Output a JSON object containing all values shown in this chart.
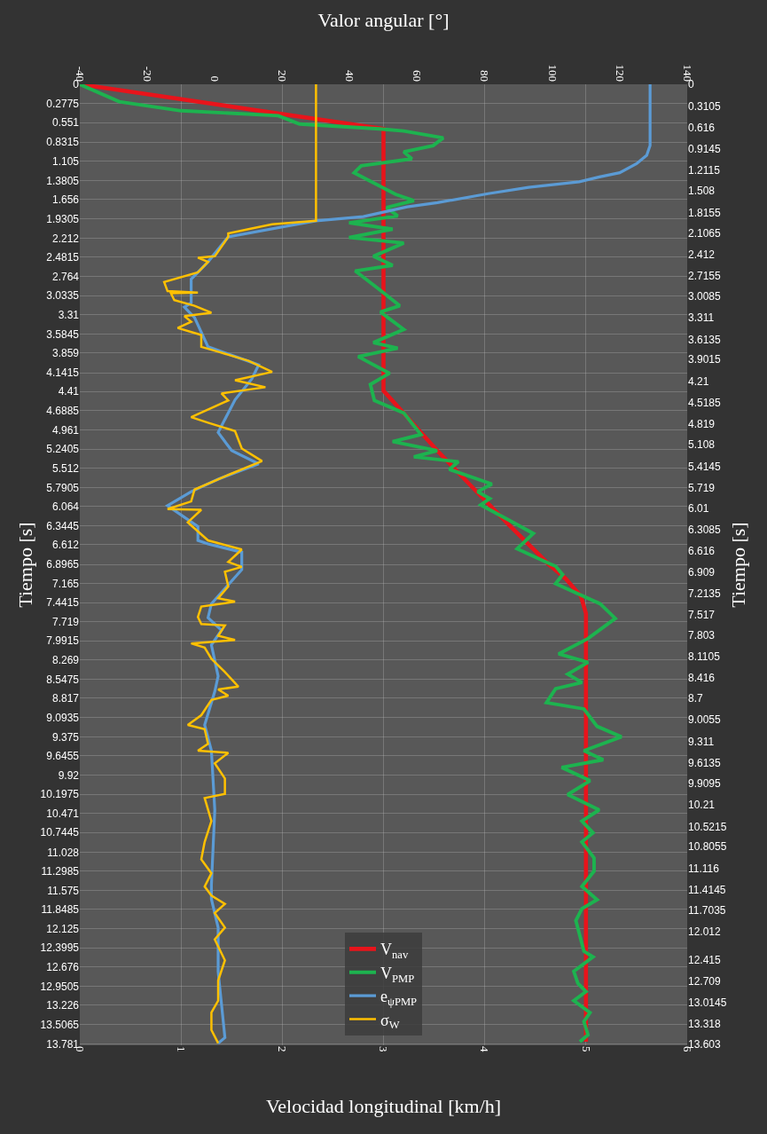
{
  "chart_data": {
    "type": "line",
    "orientation": "horizontal",
    "xlabel": "Velocidad longitudinal [km/h]",
    "x2label": "Valor angular [°]",
    "ylabel": "Tiempo [s]",
    "y2label": "Tiempo [s]",
    "xlim": [
      0,
      6
    ],
    "xticks": [
      0,
      1,
      2,
      3,
      4,
      5,
      6
    ],
    "x2lim": [
      -40,
      140
    ],
    "x2ticks": [
      -40,
      -20,
      0,
      20,
      40,
      60,
      80,
      100,
      120,
      140
    ],
    "ylim": [
      13.8,
      0
    ],
    "y2lim": [
      13.62,
      0
    ],
    "yticks": [
      0,
      0.2775,
      0.551,
      0.8315,
      1.105,
      1.3805,
      1.656,
      1.9305,
      2.212,
      2.4815,
      2.764,
      3.0335,
      3.31,
      3.5845,
      3.859,
      4.1415,
      4.41,
      4.6885,
      4.961,
      5.2405,
      5.512,
      5.7905,
      6.064,
      6.3445,
      6.612,
      6.8965,
      7.165,
      7.4415,
      7.719,
      7.9915,
      8.269,
      8.5475,
      8.817,
      9.0935,
      9.375,
      9.6455,
      9.92,
      10.1975,
      10.471,
      10.7445,
      11.028,
      11.2985,
      11.575,
      11.8485,
      12.125,
      12.3995,
      12.676,
      12.9505,
      13.226,
      13.5065,
      13.781
    ],
    "y2ticks": [
      0,
      0.3105,
      0.616,
      0.9145,
      1.2115,
      1.508,
      1.8155,
      2.1065,
      2.412,
      2.7155,
      3.0085,
      3.311,
      3.6135,
      3.9015,
      4.21,
      4.5185,
      4.819,
      5.108,
      5.4145,
      5.719,
      6.01,
      6.3085,
      6.616,
      6.909,
      7.2135,
      7.517,
      7.803,
      8.1105,
      8.416,
      8.7,
      9.0055,
      9.311,
      9.6135,
      9.9095,
      10.21,
      10.5215,
      10.8055,
      11.116,
      11.4145,
      11.7035,
      12.012,
      12.415,
      12.709,
      13.0145,
      13.318,
      13.603
    ],
    "grid": true,
    "legend": "bottom",
    "marker": "none",
    "line_style": "solid",
    "series": [
      {
        "name": "V$_{nav}$",
        "color": "#e8141b",
        "x": [
          0,
          0.64,
          4.4,
          5.26,
          5.76,
          6.3,
          6.89,
          7.1,
          7.35,
          7.6,
          13.75
        ],
        "values": [
          0,
          3.0,
          3.0,
          3.53,
          3.86,
          4.22,
          4.63,
          4.8,
          4.95,
          5.0,
          5.0
        ]
      },
      {
        "name": "V$_{PMP}$",
        "color": "#1db34f",
        "x": [
          0,
          0.25,
          0.38,
          0.45,
          0.57,
          0.64,
          0.67,
          0.77,
          0.88,
          0.97,
          1.07,
          1.17,
          1.27,
          1.58,
          1.67,
          1.77,
          1.89,
          1.99,
          2.08,
          2.2,
          2.28,
          2.47,
          2.6,
          2.68,
          2.96,
          3.18,
          3.27,
          3.52,
          3.71,
          3.79,
          3.91,
          4.15,
          4.31,
          4.54,
          4.72,
          5.03,
          5.13,
          5.26,
          5.35,
          5.42,
          5.53,
          5.74,
          5.85,
          5.95,
          6.04,
          6.26,
          6.45,
          6.67,
          6.89,
          6.92,
          7.04,
          7.17,
          7.46,
          7.67,
          7.96,
          8.18,
          8.3,
          8.47,
          8.59,
          8.68,
          8.88,
          8.97,
          9.22,
          9.37,
          9.57,
          9.7,
          9.81,
          10.0,
          10.2,
          10.42,
          10.58,
          10.75,
          10.88,
          11.11,
          11.3,
          11.52,
          11.71,
          11.84,
          12.01,
          12.45,
          12.53,
          12.74,
          12.91,
          13.03,
          13.16,
          13.33,
          13.46,
          13.65,
          13.75
        ],
        "values": [
          0,
          0.39,
          1.0,
          1.96,
          2.17,
          2.96,
          3.2,
          3.59,
          3.49,
          3.2,
          3.28,
          2.78,
          2.71,
          3.12,
          3.3,
          3.03,
          3.14,
          2.66,
          3.09,
          2.66,
          3.2,
          2.9,
          3.09,
          2.72,
          2.97,
          3.16,
          2.97,
          3.2,
          2.9,
          3.14,
          2.75,
          3.06,
          2.87,
          2.91,
          3.2,
          3.37,
          3.09,
          3.53,
          3.3,
          3.74,
          3.65,
          4.07,
          3.93,
          4.05,
          3.96,
          4.24,
          4.48,
          4.32,
          4.65,
          4.7,
          4.77,
          4.7,
          5.14,
          5.29,
          5.02,
          4.73,
          5.02,
          4.82,
          4.96,
          4.7,
          4.61,
          4.98,
          5.11,
          5.35,
          4.98,
          5.17,
          4.76,
          5.04,
          4.82,
          5.13,
          4.96,
          5.07,
          4.96,
          5.08,
          5.08,
          4.96,
          5.11,
          4.96,
          4.9,
          4.98,
          5.07,
          4.88,
          4.92,
          5.0,
          4.88,
          5.04,
          4.98,
          5.02,
          4.94
        ]
      },
      {
        "name": "e$_{ψPMP}$",
        "color": "#5b9bd5",
        "axis": "x2",
        "x": [
          0,
          0.26,
          0.64,
          0.88,
          1.02,
          1.14,
          1.27,
          1.33,
          1.4,
          1.48,
          1.57,
          1.7,
          1.76,
          1.9,
          1.96,
          2.19,
          2.55,
          2.8,
          3.14,
          3.2,
          3.35,
          3.77,
          4.03,
          4.23,
          4.53,
          5.0,
          5.26,
          5.45,
          5.67,
          5.85,
          6.05,
          6.35,
          6.55,
          6.6,
          6.72,
          6.97,
          7.46,
          7.66,
          7.84,
          8.05,
          8.5,
          8.72,
          9.2,
          9.57,
          10.42,
          11.5,
          11.7,
          12.11,
          12.74,
          13.69,
          13.77
        ],
        "values": [
          129,
          129,
          129,
          129,
          128,
          125,
          120,
          114,
          108,
          93,
          81,
          66,
          57,
          44,
          30,
          4,
          -2,
          -7,
          -7,
          -9,
          -6,
          -2,
          13,
          11,
          6,
          1,
          5,
          13,
          1,
          -7,
          -14,
          -5,
          -5,
          -2,
          8,
          8,
          -1,
          -2,
          2,
          -1,
          1,
          0,
          -3,
          -1,
          0,
          -1,
          -1,
          1,
          1,
          3,
          1
        ]
      },
      {
        "name": "σ$_{W}$",
        "color": "#ffc000",
        "axis": "x2",
        "x": [
          0,
          1.96,
          2.01,
          2.08,
          2.14,
          2.19,
          2.47,
          2.49,
          2.55,
          2.7,
          2.84,
          2.97,
          2.99,
          3.0,
          3.1,
          3.18,
          3.28,
          3.33,
          3.41,
          3.5,
          3.6,
          3.77,
          3.84,
          3.97,
          4.13,
          4.25,
          4.35,
          4.44,
          4.54,
          4.78,
          4.86,
          4.98,
          5.23,
          5.41,
          5.61,
          5.82,
          5.99,
          6.1,
          6.11,
          6.29,
          6.55,
          6.68,
          6.86,
          6.93,
          7.0,
          7.21,
          7.38,
          7.43,
          7.5,
          7.65,
          7.75,
          7.77,
          7.92,
          7.98,
          8.03,
          8.09,
          8.25,
          8.44,
          8.65,
          8.69,
          8.78,
          8.84,
          9.06,
          9.2,
          9.26,
          9.47,
          9.57,
          9.6,
          9.75,
          9.97,
          10.19,
          10.25,
          10.58,
          10.88,
          11.13,
          11.33,
          11.52,
          11.65,
          11.77,
          11.9,
          12.11,
          12.28,
          12.58,
          12.87,
          13.16,
          13.33,
          13.58,
          13.77
        ],
        "values": [
          30,
          30,
          17,
          10,
          4,
          4,
          0,
          -5,
          -2,
          -5,
          -15,
          -14,
          -5,
          -13,
          -12,
          -6,
          -1,
          -9,
          -7,
          -11,
          -4,
          -4,
          1,
          10,
          17,
          6,
          15,
          2,
          4,
          -7,
          -2,
          6,
          8,
          14,
          4,
          -6,
          -7,
          -14,
          -4,
          -8,
          -2,
          8,
          4,
          8,
          3,
          4,
          1,
          6,
          -4,
          -5,
          -4,
          3,
          1,
          6,
          -7,
          -3,
          -1,
          3,
          7,
          1,
          4,
          -1,
          -4,
          -8,
          -3,
          -2,
          -5,
          4,
          0,
          3,
          3,
          -3,
          -1,
          -3,
          -4,
          -1,
          -3,
          -1,
          3,
          0,
          3,
          0,
          3,
          1,
          1,
          -1,
          -1,
          1
        ]
      }
    ]
  }
}
